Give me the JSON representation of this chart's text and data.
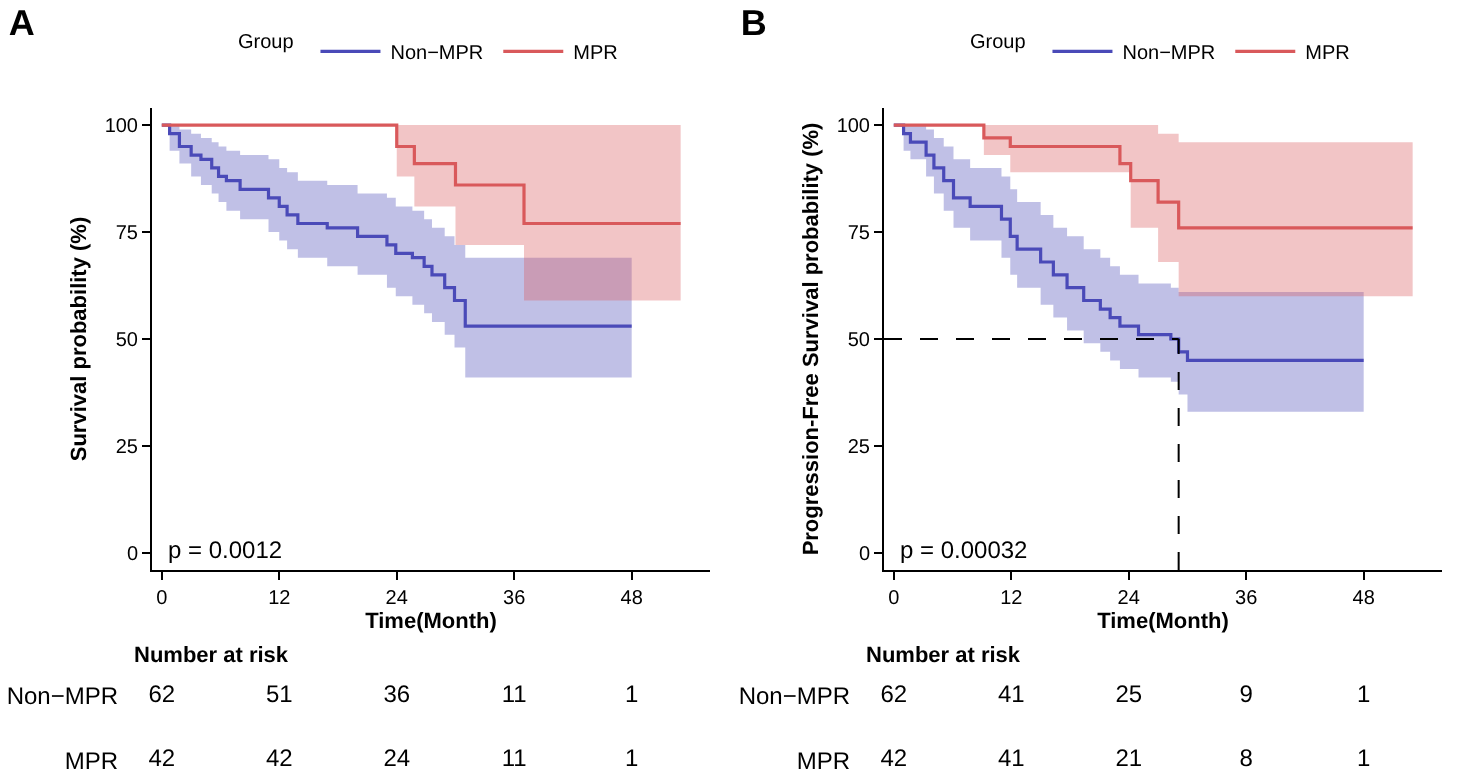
{
  "chart_data": [
    {
      "type": "step",
      "title": "A",
      "xlabel": "Time(Month)",
      "ylabel": "Survival probability (%)",
      "legend_title": "Group",
      "legend": "top",
      "xlim": [
        -1,
        56
      ],
      "ylim": [
        -4,
        104
      ],
      "xticks": [
        0,
        12,
        24,
        36,
        48
      ],
      "yticks": [
        0,
        25,
        50,
        75,
        100
      ],
      "grid": false,
      "annotations": [
        "p = 0.0012"
      ],
      "series": [
        {
          "name": "Non−MPR",
          "color": "#4a4ab8",
          "x": [
            0,
            0.8,
            1.8,
            3.0,
            4.0,
            5.1,
            5.8,
            6.6,
            8.0,
            10.9,
            12.0,
            12.8,
            13.9,
            16.9,
            20.0,
            23.0,
            23.9,
            25.6,
            26.8,
            27.6,
            28.9,
            29.9,
            31.0,
            48
          ],
          "values": [
            100,
            98,
            95,
            93,
            92,
            90,
            88,
            87,
            85,
            83,
            81,
            79,
            77,
            76,
            74,
            72,
            70,
            69,
            67,
            65,
            62,
            59,
            53,
            53
          ],
          "lower": [
            100,
            94,
            91,
            88,
            86,
            84,
            82,
            80,
            78,
            75,
            73,
            71,
            69,
            67,
            65,
            62,
            60,
            58,
            56,
            54,
            51,
            48,
            41,
            41
          ],
          "upper": [
            100,
            100,
            99,
            98,
            97,
            96,
            95,
            94,
            93,
            92,
            90,
            89,
            87,
            86,
            84,
            83,
            81,
            80,
            78,
            76,
            74,
            72,
            69,
            69
          ]
        },
        {
          "name": "MPR",
          "color": "#d9595b",
          "x": [
            0,
            24,
            25.8,
            30,
            37,
            53
          ],
          "values": [
            100,
            95,
            91,
            86,
            77,
            77
          ],
          "lower": [
            100,
            88,
            81,
            72,
            59,
            59
          ],
          "upper": [
            100,
            100,
            100,
            100,
            100,
            100
          ]
        }
      ]
    },
    {
      "type": "step",
      "title": "B",
      "xlabel": "Time(Month)",
      "ylabel": "Progression-Free Survival probability (%)",
      "legend_title": "Group",
      "legend": "top",
      "xlim": [
        -1,
        56
      ],
      "ylim": [
        -4,
        104
      ],
      "xticks": [
        0,
        12,
        24,
        36,
        48
      ],
      "yticks": [
        0,
        25,
        50,
        75,
        100
      ],
      "grid": false,
      "annotations": [
        "p = 0.00032"
      ],
      "ref_lines": [
        {
          "axis": "y",
          "value": 50,
          "line_style": "dashed",
          "color": "#000000"
        },
        {
          "axis": "x",
          "value": 29.1,
          "line_style": "dashed",
          "color": "#000000"
        }
      ],
      "series": [
        {
          "name": "Non−MPR",
          "color": "#4a4ab8",
          "x": [
            0,
            1.0,
            1.7,
            3.3,
            4.1,
            5.1,
            6.1,
            7.8,
            11.0,
            11.9,
            12.6,
            15.0,
            16.3,
            17.7,
            19.4,
            21.1,
            22.1,
            23.1,
            25.0,
            28.3,
            29.1,
            30.0,
            48
          ],
          "values": [
            100,
            98,
            96,
            93,
            90,
            87,
            83,
            81,
            78,
            74,
            71,
            68,
            65,
            62,
            59,
            57,
            55,
            53,
            51,
            50,
            47,
            45,
            45
          ],
          "lower": [
            100,
            94,
            92,
            88,
            84,
            80,
            76,
            73,
            69,
            65,
            62,
            58,
            55,
            52,
            49,
            47,
            45,
            43,
            41,
            40,
            37,
            33,
            33
          ],
          "upper": [
            100,
            100,
            100,
            99,
            97,
            95,
            92,
            90,
            88,
            85,
            82,
            79,
            76,
            74,
            71,
            69,
            67,
            65,
            63,
            62,
            61,
            61,
            61
          ]
        },
        {
          "name": "MPR",
          "color": "#d9595b",
          "x": [
            0,
            9.2,
            11.9,
            23.1,
            24.2,
            27.0,
            29.1,
            53
          ],
          "values": [
            100,
            97,
            95,
            91,
            87,
            82,
            76,
            76
          ],
          "lower": [
            100,
            93,
            89,
            89,
            76,
            68,
            60,
            60
          ],
          "upper": [
            100,
            100,
            100,
            100,
            100,
            98,
            96,
            96
          ]
        }
      ]
    },
    {
      "type": "other",
      "title": "Number at risk",
      "y_categories": [
        "Non−MPR",
        "MPR"
      ],
      "annotations": [
        "62",
        "51",
        "36",
        "11",
        "1",
        "42",
        "42",
        "24",
        "11",
        "1"
      ]
    },
    {
      "type": "other",
      "title": "Number at risk",
      "y_categories": [
        "Non−MPR",
        "MPR"
      ],
      "annotations": [
        "62",
        "41",
        "25",
        "9",
        "1",
        "42",
        "41",
        "21",
        "8",
        "1"
      ]
    }
  ]
}
